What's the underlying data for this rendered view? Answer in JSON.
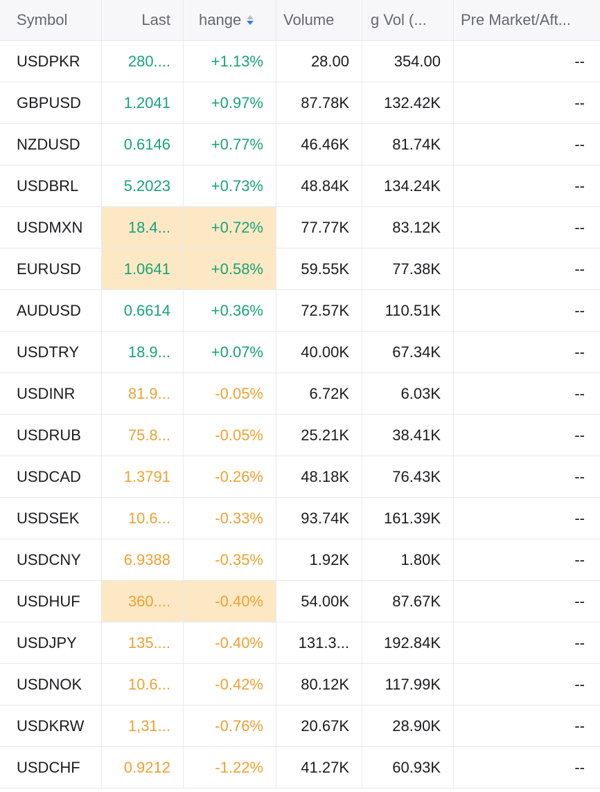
{
  "colors": {
    "positive": "#16a377",
    "negative": "#f0a030",
    "highlight": "#fde8c6",
    "sort_active": "#2b7de9"
  },
  "headers": {
    "symbol": "Symbol",
    "last": "Last",
    "change": "hange",
    "volume": "Volume",
    "avg_vol": "g Vol (...",
    "pre_market": "Pre Market/Aft..."
  },
  "rows": [
    {
      "symbol": "USDPKR",
      "last": "280....",
      "change": "+1.13%",
      "volume": "28.00",
      "avg_vol": "354.00",
      "pre_market": "--",
      "dir": "up",
      "highlight": false
    },
    {
      "symbol": "GBPUSD",
      "last": "1.2041",
      "change": "+0.97%",
      "volume": "87.78K",
      "avg_vol": "132.42K",
      "pre_market": "--",
      "dir": "up",
      "highlight": false
    },
    {
      "symbol": "NZDUSD",
      "last": "0.6146",
      "change": "+0.77%",
      "volume": "46.46K",
      "avg_vol": "81.74K",
      "pre_market": "--",
      "dir": "up",
      "highlight": false
    },
    {
      "symbol": "USDBRL",
      "last": "5.2023",
      "change": "+0.73%",
      "volume": "48.84K",
      "avg_vol": "134.24K",
      "pre_market": "--",
      "dir": "up",
      "highlight": false
    },
    {
      "symbol": "USDMXN",
      "last": "18.4...",
      "change": "+0.72%",
      "volume": "77.77K",
      "avg_vol": "83.12K",
      "pre_market": "--",
      "dir": "up",
      "highlight": true
    },
    {
      "symbol": "EURUSD",
      "last": "1.0641",
      "change": "+0.58%",
      "volume": "59.55K",
      "avg_vol": "77.38K",
      "pre_market": "--",
      "dir": "up",
      "highlight": true
    },
    {
      "symbol": "AUDUSD",
      "last": "0.6614",
      "change": "+0.36%",
      "volume": "72.57K",
      "avg_vol": "110.51K",
      "pre_market": "--",
      "dir": "up",
      "highlight": false
    },
    {
      "symbol": "USDTRY",
      "last": "18.9...",
      "change": "+0.07%",
      "volume": "40.00K",
      "avg_vol": "67.34K",
      "pre_market": "--",
      "dir": "up",
      "highlight": false
    },
    {
      "symbol": "USDINR",
      "last": "81.9...",
      "change": "-0.05%",
      "volume": "6.72K",
      "avg_vol": "6.03K",
      "pre_market": "--",
      "dir": "down",
      "highlight": false
    },
    {
      "symbol": "USDRUB",
      "last": "75.8...",
      "change": "-0.05%",
      "volume": "25.21K",
      "avg_vol": "38.41K",
      "pre_market": "--",
      "dir": "down",
      "highlight": false
    },
    {
      "symbol": "USDCAD",
      "last": "1.3791",
      "change": "-0.26%",
      "volume": "48.18K",
      "avg_vol": "76.43K",
      "pre_market": "--",
      "dir": "down",
      "highlight": false
    },
    {
      "symbol": "USDSEK",
      "last": "10.6...",
      "change": "-0.33%",
      "volume": "93.74K",
      "avg_vol": "161.39K",
      "pre_market": "--",
      "dir": "down",
      "highlight": false
    },
    {
      "symbol": "USDCNY",
      "last": "6.9388",
      "change": "-0.35%",
      "volume": "1.92K",
      "avg_vol": "1.80K",
      "pre_market": "--",
      "dir": "down",
      "highlight": false
    },
    {
      "symbol": "USDHUF",
      "last": "360....",
      "change": "-0.40%",
      "volume": "54.00K",
      "avg_vol": "87.67K",
      "pre_market": "--",
      "dir": "down",
      "highlight": true
    },
    {
      "symbol": "USDJPY",
      "last": "135....",
      "change": "-0.40%",
      "volume": "131.3...",
      "avg_vol": "192.84K",
      "pre_market": "--",
      "dir": "down",
      "highlight": false
    },
    {
      "symbol": "USDNOK",
      "last": "10.6...",
      "change": "-0.42%",
      "volume": "80.12K",
      "avg_vol": "117.99K",
      "pre_market": "--",
      "dir": "down",
      "highlight": false
    },
    {
      "symbol": "USDKRW",
      "last": "1,31...",
      "change": "-0.76%",
      "volume": "20.67K",
      "avg_vol": "28.90K",
      "pre_market": "--",
      "dir": "down",
      "highlight": false
    },
    {
      "symbol": "USDCHF",
      "last": "0.9212",
      "change": "-1.22%",
      "volume": "41.27K",
      "avg_vol": "60.93K",
      "pre_market": "--",
      "dir": "down",
      "highlight": false
    }
  ]
}
